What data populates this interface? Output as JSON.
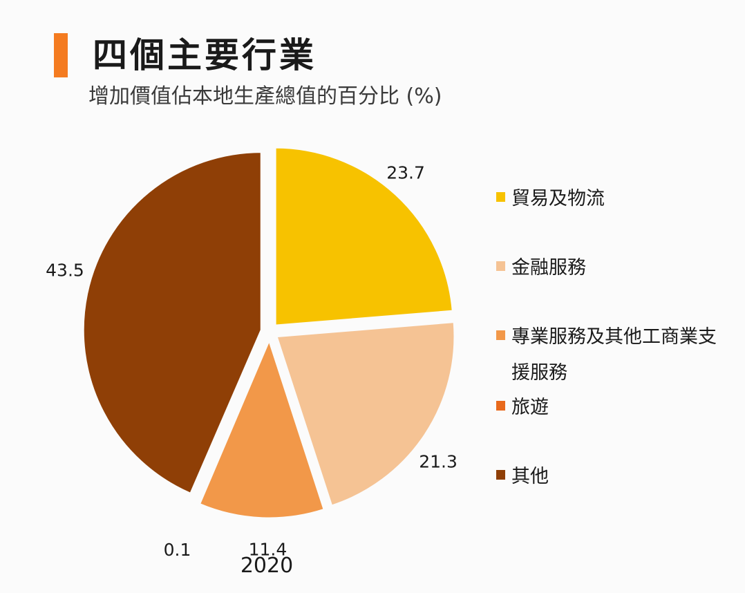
{
  "header": {
    "title": "四個主要行業",
    "subtitle": "增加價值佔本地生產總值的百分比 (%)",
    "accent_color": "#f47b20"
  },
  "chart_data": {
    "type": "pie",
    "year": "2020",
    "legend_position": "right",
    "slices": [
      {
        "name": "貿易及物流",
        "value": 23.7,
        "label": "23.7",
        "color": "#f7c200"
      },
      {
        "name": "金融服務",
        "value": 21.3,
        "label": "21.3",
        "color": "#f5c394"
      },
      {
        "name": "專業服務及其他工商業支援服務",
        "value": 11.4,
        "label": "11.4",
        "color": "#f29849"
      },
      {
        "name": "旅遊",
        "value": 0.1,
        "label": "0.1",
        "color": "#e8691c"
      },
      {
        "name": "其他",
        "value": 43.5,
        "label": "43.5",
        "color": "#8f3f06"
      }
    ]
  }
}
